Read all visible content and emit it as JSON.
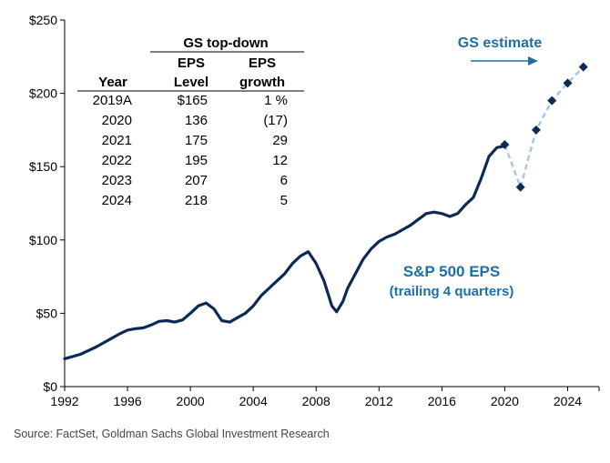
{
  "chart_data": {
    "type": "line",
    "xlim": [
      1992,
      2026
    ],
    "ylim": [
      0,
      250
    ],
    "x_ticks": [
      "1992",
      "1996",
      "2000",
      "2004",
      "2008",
      "2012",
      "2016",
      "2020",
      "2024"
    ],
    "y_ticks": [
      "$0",
      "$50",
      "$100",
      "$150",
      "$200",
      "$250"
    ],
    "series": [
      {
        "name": "S&P 500 EPS (trailing 4 quarters)",
        "style": "solid",
        "color": "#0d2a52",
        "x": [
          1992.0,
          1992.5,
          1993.0,
          1993.5,
          1994.0,
          1994.5,
          1995.0,
          1995.5,
          1996.0,
          1996.5,
          1997.0,
          1997.5,
          1998.0,
          1998.5,
          1999.0,
          1999.5,
          2000.0,
          2000.5,
          2001.0,
          2001.5,
          2002.0,
          2002.5,
          2003.0,
          2003.5,
          2004.0,
          2004.5,
          2005.0,
          2005.5,
          2006.0,
          2006.5,
          2007.0,
          2007.5,
          2008.0,
          2008.5,
          2009.0,
          2009.3,
          2009.7,
          2010.0,
          2010.5,
          2011.0,
          2011.5,
          2012.0,
          2012.5,
          2013.0,
          2013.5,
          2014.0,
          2014.5,
          2015.0,
          2015.5,
          2016.0,
          2016.5,
          2017.0,
          2017.5,
          2018.0,
          2018.5,
          2019.0,
          2019.5,
          2020.0
        ],
        "y": [
          19,
          20.5,
          22,
          24.5,
          27,
          30,
          33,
          36,
          38.5,
          39.5,
          40,
          42,
          44.5,
          45,
          44,
          45.5,
          50,
          55,
          57,
          53,
          45,
          44,
          47,
          50,
          55,
          62,
          67,
          72,
          77,
          84,
          89,
          92,
          84,
          72,
          55,
          51,
          58,
          67,
          77,
          87,
          94,
          99,
          102,
          104,
          107,
          110,
          114,
          118,
          119,
          118,
          116,
          118,
          124,
          129,
          142,
          157,
          163,
          164
        ]
      },
      {
        "name": "GS estimate",
        "style": "dashed",
        "color": "#a8c6e0",
        "x": [
          2020,
          2021,
          2022,
          2023,
          2024,
          2025
        ],
        "y": [
          165,
          136,
          175,
          195,
          207,
          218
        ]
      }
    ],
    "estimate_marker_color": "#0d2a52",
    "annotations": {
      "series_label_line1": "S&P 500 EPS",
      "series_label_line2": "(trailing 4 quarters)",
      "estimate_label": "GS estimate"
    },
    "table": {
      "group_header": "GS top-down",
      "col_header_year": "Year",
      "col_header_eps_1": "EPS",
      "col_header_eps_2": "Level",
      "col_header_growth_1": "EPS",
      "col_header_growth_2": "growth",
      "rows": [
        {
          "year": "2019A",
          "level": "$165",
          "growth": "1 %"
        },
        {
          "year": "2020",
          "level": "136",
          "growth": "(17)"
        },
        {
          "year": "2021",
          "level": "175",
          "growth": "29"
        },
        {
          "year": "2022",
          "level": "195",
          "growth": "12"
        },
        {
          "year": "2023",
          "level": "207",
          "growth": "6"
        },
        {
          "year": "2024",
          "level": "218",
          "growth": "5"
        }
      ]
    }
  },
  "source": "Source: FactSet, Goldman Sachs Global Investment Research"
}
